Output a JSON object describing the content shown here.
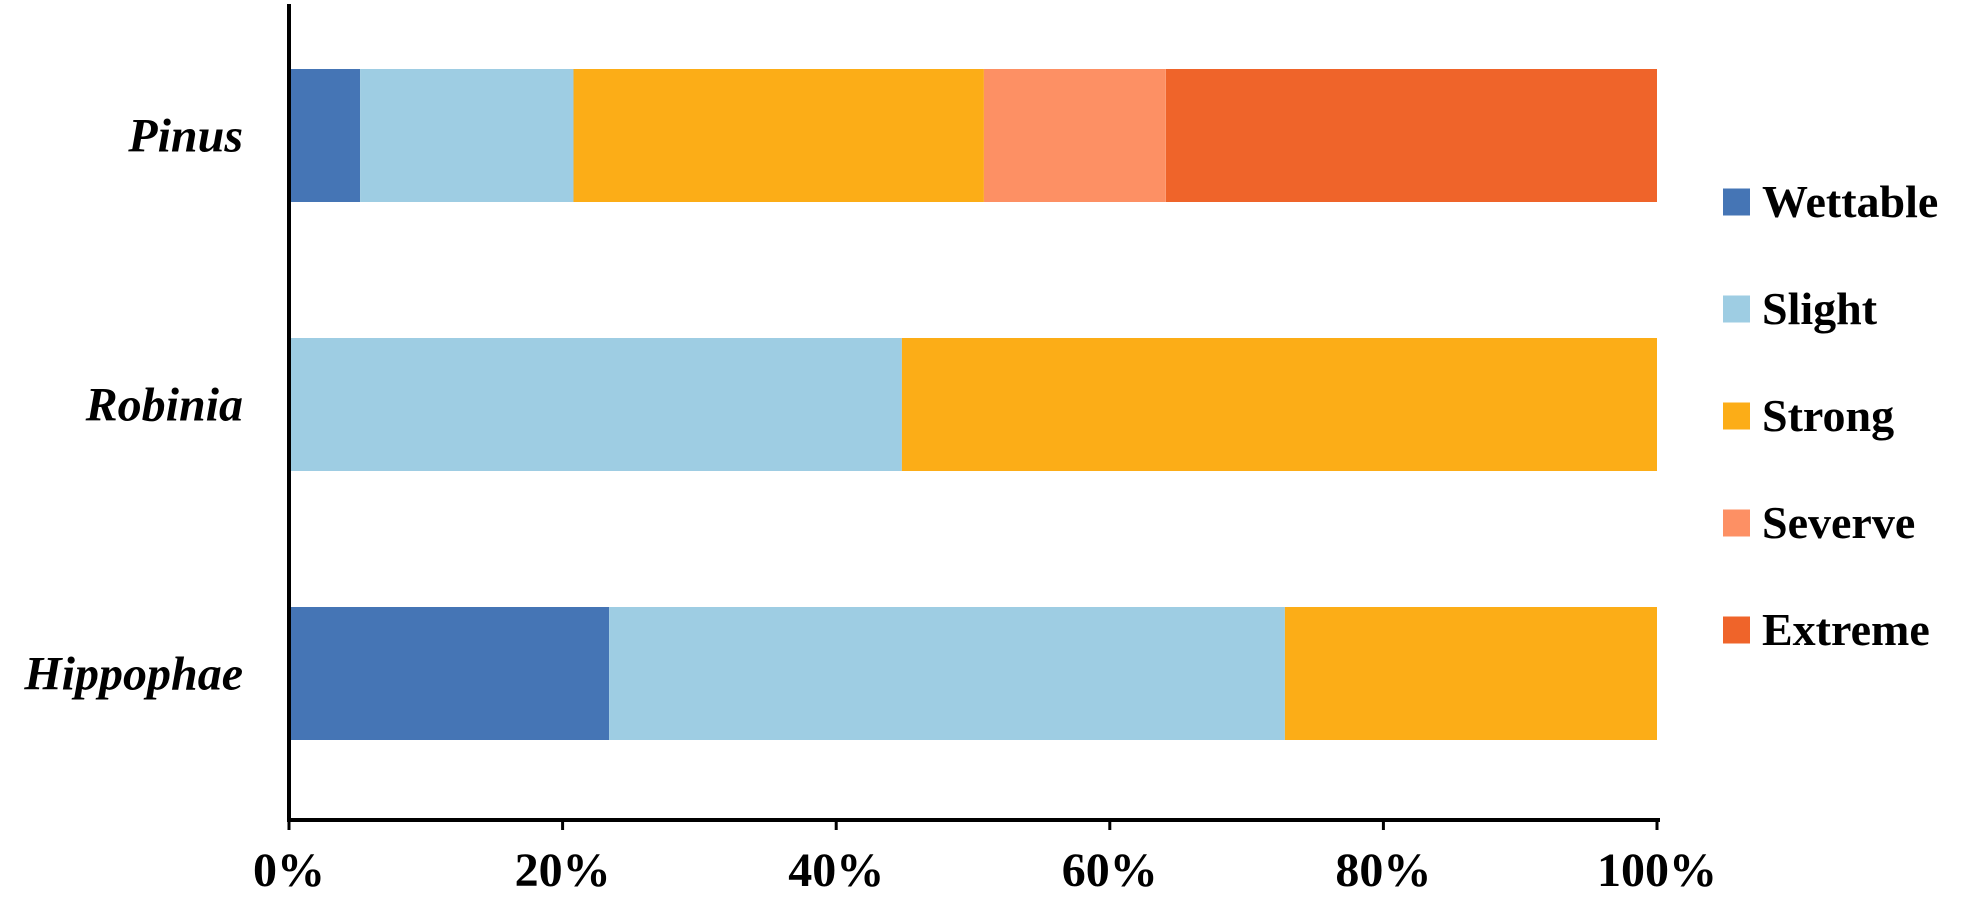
{
  "chart_data": {
    "type": "bar",
    "orientation": "horizontal",
    "stacked": "100%",
    "categories": [
      "Pinus",
      "Robinia",
      "Hippophae"
    ],
    "series": [
      {
        "name": "Wettable",
        "color": "#4575B5",
        "values": [
          5.2,
          0,
          23.4
        ]
      },
      {
        "name": "Slight",
        "color": "#9ECDE3",
        "values": [
          15.6,
          44.8,
          49.4
        ]
      },
      {
        "name": "Strong",
        "color": "#FCAD17",
        "values": [
          30.0,
          55.2,
          27.2
        ]
      },
      {
        "name": "Severve",
        "color": "#FD9064",
        "values": [
          13.3,
          0,
          0
        ]
      },
      {
        "name": "Extreme",
        "color": "#EF642A",
        "values": [
          35.9,
          0,
          0
        ]
      }
    ],
    "xlim": [
      0,
      100
    ],
    "x_ticks": [
      "0%",
      "20%",
      "40%",
      "60%",
      "80%",
      "100%"
    ],
    "grid": false,
    "legend_position": "right"
  }
}
